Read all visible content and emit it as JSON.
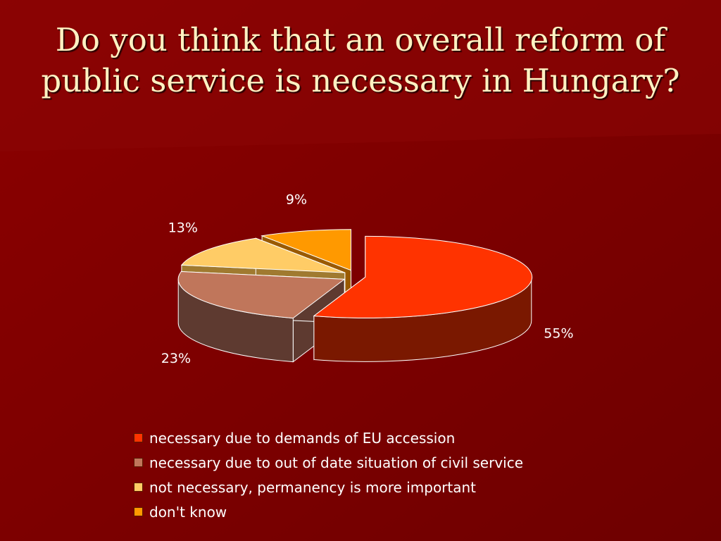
{
  "slide": {
    "title": "Do you think that an overall reform of public service is necessary in Hungary?"
  },
  "chart_data": {
    "type": "pie",
    "title": "",
    "series": [
      {
        "name": "necessary due to demands of EU accession",
        "value": 55,
        "label": "55%",
        "color": "#ff3300",
        "side_color": "#7a1800"
      },
      {
        "name": "necessary due to out of date situation of civil service",
        "value": 23,
        "label": "23%",
        "color": "#c0765b",
        "side_color": "#5e3a30"
      },
      {
        "name": "not necessary, permanency is more important",
        "value": 13,
        "label": "13%",
        "color": "#ffcc66",
        "side_color": "#a07a30"
      },
      {
        "name": "don't know",
        "value": 9,
        "label": "9%",
        "color": "#ff9900",
        "side_color": "#9a5a00"
      }
    ],
    "legend_position": "bottom",
    "style": "3d-exploded"
  },
  "colors": {
    "background": "#7a0000",
    "title_text": "#fff1c2",
    "label_text": "#ffffff"
  }
}
